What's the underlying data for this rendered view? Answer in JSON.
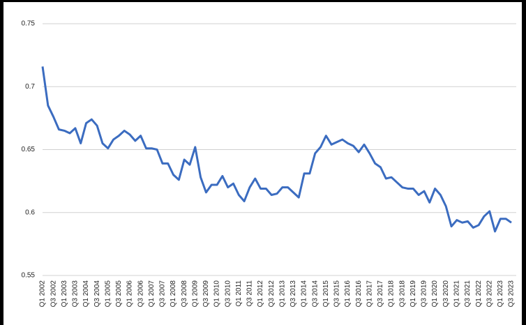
{
  "chart_data": {
    "type": "line",
    "categories": [
      "Q1 2002",
      null,
      "Q3 2002",
      null,
      "Q1 2003",
      null,
      "Q3 2003",
      null,
      "Q1 2004",
      null,
      "Q3 2004",
      null,
      "Q1 2005",
      null,
      "Q3 2005",
      null,
      "Q1 2006",
      null,
      "Q3 2006",
      null,
      "Q1 2007",
      null,
      "Q3 2007",
      null,
      "Q1 2008",
      null,
      "Q3 2008",
      null,
      "Q1 2009",
      null,
      "Q3 2009",
      null,
      "Q1 2010",
      null,
      "Q3 2010",
      null,
      "Q1 2011",
      null,
      "Q3 2011",
      null,
      "Q1 2012",
      null,
      "Q3 2012",
      null,
      "Q1 2013",
      null,
      "Q3 2013",
      null,
      "Q1 2014",
      null,
      "Q3 2014",
      null,
      "Q1 2015",
      null,
      "Q3 2015",
      null,
      "Q1 2016",
      null,
      "Q3 2016",
      null,
      "Q1 2017",
      null,
      "Q3 2017",
      null,
      "Q1 2018",
      null,
      "Q3 2018",
      null,
      "Q1 2019",
      null,
      "Q3 2019",
      null,
      "Q1 2020",
      null,
      "Q3 2020",
      null,
      "Q1 2021",
      null,
      "Q3 2021",
      null,
      "Q1 2022",
      null,
      "Q3 2022",
      null,
      "Q1 2023",
      null,
      "Q3 2023"
    ],
    "values": [
      0.716,
      0.685,
      0.676,
      0.666,
      0.665,
      0.663,
      0.667,
      0.655,
      0.671,
      0.674,
      0.669,
      0.655,
      0.651,
      0.658,
      0.661,
      0.665,
      0.662,
      0.657,
      0.661,
      0.651,
      0.651,
      0.65,
      0.639,
      0.639,
      0.63,
      0.626,
      0.642,
      0.638,
      0.652,
      0.628,
      0.616,
      0.622,
      0.622,
      0.629,
      0.62,
      0.623,
      0.614,
      0.609,
      0.62,
      0.627,
      0.619,
      0.619,
      0.614,
      0.615,
      0.62,
      0.62,
      0.616,
      0.612,
      0.631,
      0.631,
      0.647,
      0.652,
      0.661,
      0.654,
      0.656,
      0.658,
      0.655,
      0.653,
      0.648,
      0.654,
      0.647,
      0.639,
      0.636,
      0.627,
      0.628,
      0.624,
      0.62,
      0.619,
      0.619,
      0.614,
      0.617,
      0.608,
      0.619,
      0.614,
      0.605,
      0.589,
      0.594,
      0.592,
      0.593,
      0.588,
      0.59,
      0.597,
      0.601,
      0.585,
      0.595,
      0.595,
      0.592
    ],
    "color": "#3b6cc0",
    "ylim": [
      0.55,
      0.75
    ],
    "yticks": [
      0.55,
      0.6,
      0.65,
      0.7,
      0.75
    ],
    "grid": true
  }
}
